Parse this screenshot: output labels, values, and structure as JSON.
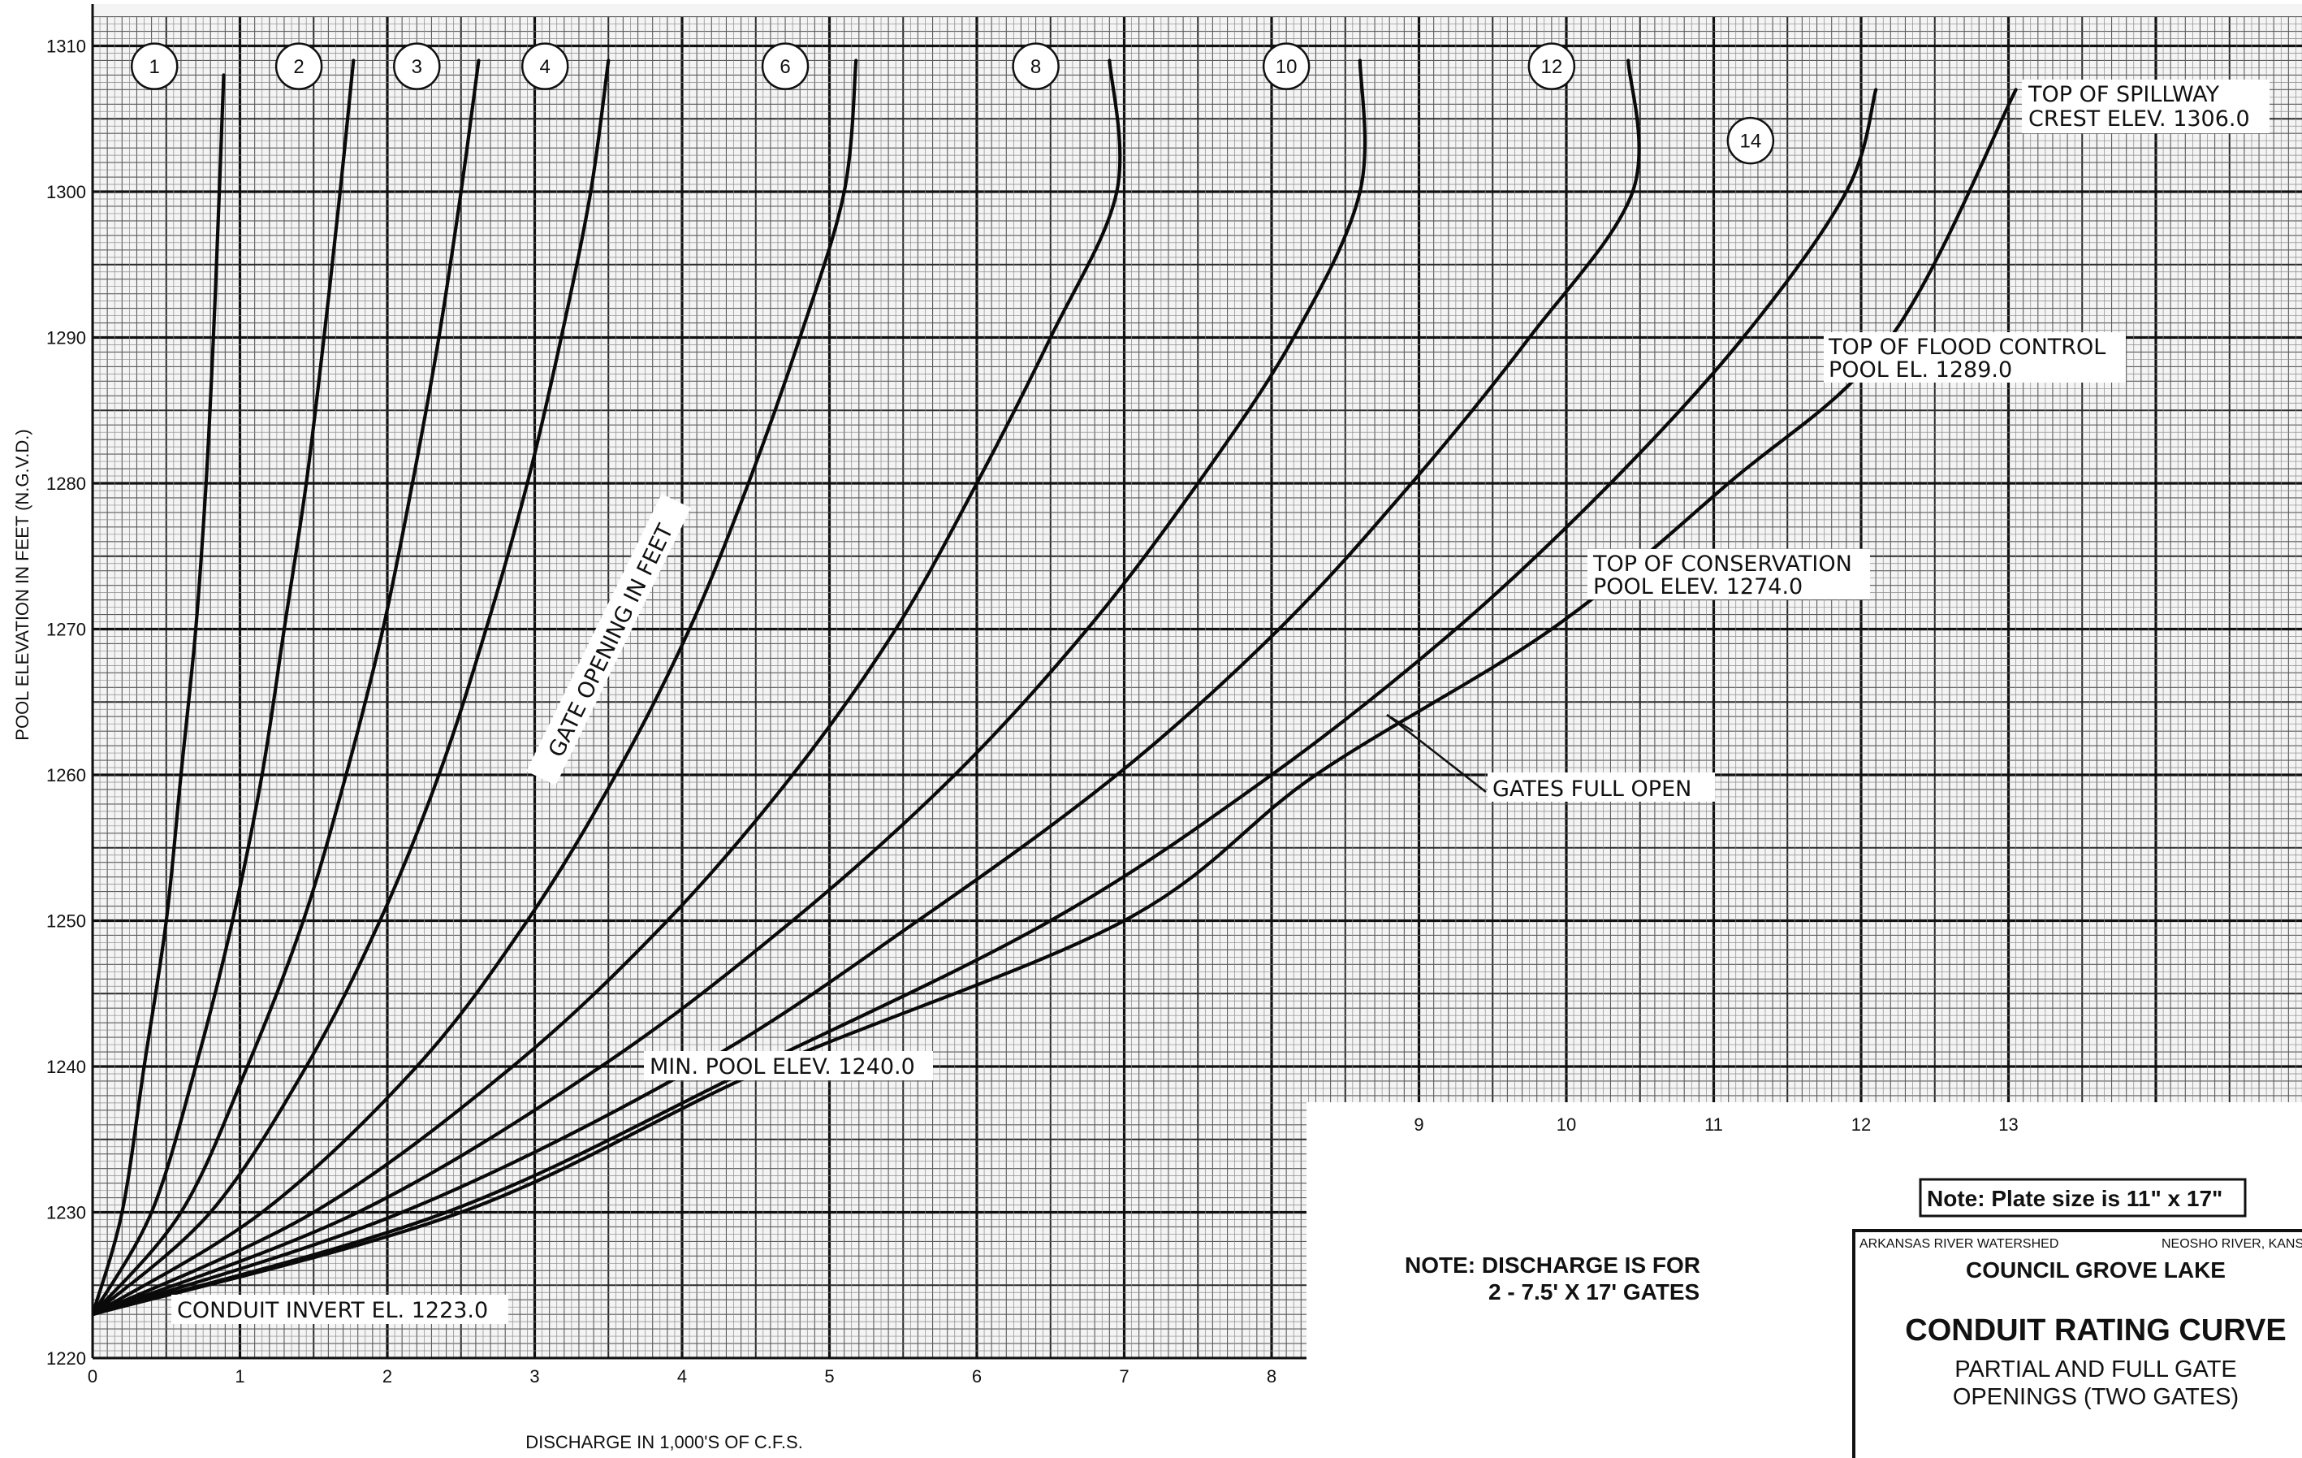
{
  "chart_data": {
    "type": "line",
    "xlabel": "DISCHARGE IN 1,000'S OF C.F.S.",
    "ylabel": "POOL ELEVATION IN FEET (N.G.V.D.)",
    "xlim": [
      0,
      15
    ],
    "ylim": [
      1220,
      1312
    ],
    "x_ticks": [
      "0",
      "1",
      "2",
      "3",
      "4",
      "5",
      "6",
      "7",
      "8",
      "9",
      "10",
      "11",
      "12",
      "13"
    ],
    "y_ticks": [
      "1220",
      "1230",
      "1240",
      "1250",
      "1260",
      "1270",
      "1280",
      "1290",
      "1300",
      "1310"
    ],
    "grid": true,
    "series": [
      {
        "name": "1",
        "x": [
          0,
          0.2,
          0.35,
          0.5,
          0.6,
          0.7,
          0.77,
          0.82,
          0.86,
          0.89
        ],
        "y": [
          1223,
          1230,
          1240,
          1250,
          1260,
          1270,
          1280,
          1290,
          1300,
          1308
        ]
      },
      {
        "name": "2",
        "x": [
          0,
          0.4,
          0.7,
          0.95,
          1.15,
          1.3,
          1.45,
          1.57,
          1.68,
          1.77
        ],
        "y": [
          1223,
          1230,
          1240,
          1250,
          1260,
          1270,
          1280,
          1290,
          1300,
          1309
        ]
      },
      {
        "name": "3",
        "x": [
          0,
          0.6,
          1.05,
          1.43,
          1.72,
          1.97,
          2.17,
          2.35,
          2.5,
          2.62
        ],
        "y": [
          1223,
          1230,
          1240,
          1250,
          1260,
          1270,
          1280,
          1290,
          1300,
          1309
        ]
      },
      {
        "name": "4",
        "x": [
          0,
          0.8,
          1.45,
          1.95,
          2.35,
          2.67,
          2.95,
          3.18,
          3.38,
          3.5
        ],
        "y": [
          1223,
          1230,
          1240,
          1250,
          1260,
          1270,
          1280,
          1290,
          1300,
          1309
        ]
      },
      {
        "name": "6",
        "x": [
          0,
          1.15,
          2.2,
          2.95,
          3.55,
          4.05,
          4.45,
          4.8,
          5.1,
          5.18
        ],
        "y": [
          1223,
          1230,
          1240,
          1250,
          1260,
          1270,
          1280,
          1290,
          1300,
          1309
        ]
      },
      {
        "name": "8",
        "x": [
          0,
          1.5,
          2.85,
          3.9,
          4.75,
          5.45,
          6.0,
          6.5,
          6.95,
          6.9
        ],
        "y": [
          1223,
          1230,
          1240,
          1250,
          1260,
          1270,
          1280,
          1290,
          1300,
          1309
        ]
      },
      {
        "name": "10",
        "x": [
          0,
          1.8,
          3.45,
          4.75,
          5.85,
          6.75,
          7.5,
          8.15,
          8.6,
          8.6
        ],
        "y": [
          1223,
          1230,
          1240,
          1250,
          1260,
          1270,
          1280,
          1290,
          1300,
          1309
        ]
      },
      {
        "name": "12",
        "x": [
          0,
          2.1,
          4.1,
          5.6,
          6.95,
          8.05,
          8.95,
          9.75,
          10.45,
          10.42
        ],
        "y": [
          1223,
          1230,
          1240,
          1250,
          1260,
          1270,
          1280,
          1290,
          1300,
          1309
        ]
      },
      {
        "name": "14",
        "x": [
          0,
          2.4,
          4.5,
          6.5,
          8.0,
          9.25,
          10.3,
          11.2,
          11.9,
          12.1
        ],
        "y": [
          1223,
          1230,
          1240,
          1250,
          1260,
          1270,
          1280,
          1290,
          1300,
          1307
        ]
      },
      {
        "name": "GATES FULL OPEN",
        "x": [
          0,
          2.5,
          4.6,
          7.0,
          8.3,
          9.9,
          11.1,
          12.2,
          13.05
        ],
        "y": [
          1223,
          1230,
          1240,
          1250,
          1260,
          1270,
          1280,
          1290,
          1307
        ]
      }
    ],
    "circle_labels": [
      {
        "text": "1",
        "x": 0.42,
        "y": 1308.6
      },
      {
        "text": "2",
        "x": 1.4,
        "y": 1308.6
      },
      {
        "text": "3",
        "x": 2.2,
        "y": 1308.6
      },
      {
        "text": "4",
        "x": 3.07,
        "y": 1308.6
      },
      {
        "text": "6",
        "x": 4.7,
        "y": 1308.6
      },
      {
        "text": "8",
        "x": 6.4,
        "y": 1308.6
      },
      {
        "text": "10",
        "x": 8.1,
        "y": 1308.6
      },
      {
        "text": "12",
        "x": 9.9,
        "y": 1308.6
      },
      {
        "text": "14",
        "x": 11.25,
        "y": 1303.5
      }
    ],
    "annotations": [
      {
        "line1": "TOP OF SPILLWAY",
        "line2": "CREST ELEV. 1306.0"
      },
      {
        "line1": "TOP OF FLOOD CONTROL",
        "line2": "POOL EL. 1289.0"
      },
      {
        "line1": "TOP OF CONSERVATION",
        "line2": "POOL ELEV. 1274.0"
      },
      {
        "line1": "GATES FULL OPEN",
        "line2": ""
      },
      {
        "line1": "MIN. POOL ELEV. 1240.0",
        "line2": ""
      },
      {
        "line1": "CONDUIT INVERT EL. 1223.0",
        "line2": ""
      }
    ],
    "rotated_label": "GATE OPENING IN FEET"
  },
  "notes": {
    "plate": "Note:  Plate size is 11\" x 17\"",
    "discharge_line1": "NOTE:  DISCHARGE IS FOR",
    "discharge_line2": "2 - 7.5' X 17'  GATES"
  },
  "title_block": {
    "watershed": "ARKANSAS RIVER WATERSHED",
    "river": "NEOSHO RIVER, KANS",
    "lake": "COUNCIL GROVE LAKE",
    "title": "CONDUIT RATING CURVE",
    "subtitle1": "PARTIAL AND FULL GATE",
    "subtitle2": "OPENINGS (TWO GATES)"
  }
}
